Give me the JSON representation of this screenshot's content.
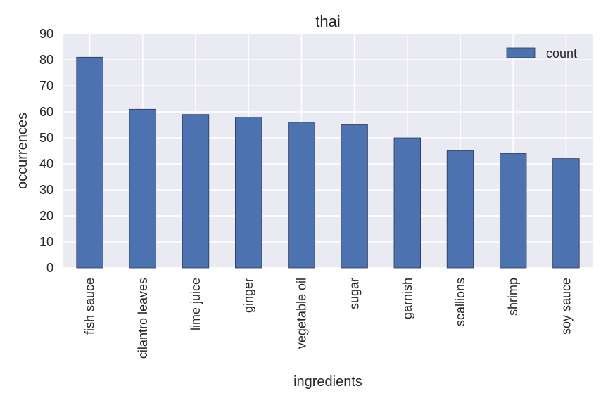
{
  "chart_data": {
    "type": "bar",
    "title": "thai",
    "xlabel": "ingredients",
    "ylabel": "occurrences",
    "categories": [
      "fish sauce",
      "cilantro leaves",
      "lime juice",
      "ginger",
      "vegetable oil",
      "sugar",
      "garnish",
      "scallions",
      "shrimp",
      "soy sauce"
    ],
    "series": [
      {
        "name": "count",
        "values": [
          81,
          61,
          59,
          58,
          56,
          55,
          50,
          45,
          44,
          42
        ]
      }
    ],
    "ylim": [
      0,
      90
    ],
    "yticks": [
      0,
      10,
      20,
      30,
      40,
      50,
      60,
      70,
      80,
      90
    ],
    "grid": true,
    "legend_position": "top-right",
    "colors": {
      "bar": "#4c72b0",
      "bar_edge": "#2b3a55",
      "plot_background": "#eaeaf2",
      "grid": "#ffffff"
    }
  }
}
